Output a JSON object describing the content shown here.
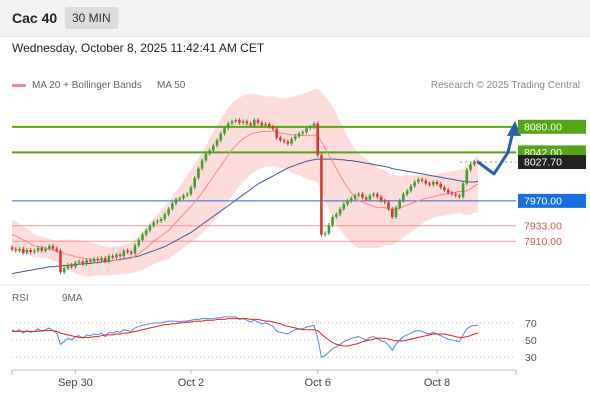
{
  "header": {
    "symbol": "Cac 40",
    "timeframe": "30 MIN"
  },
  "datetime": "Wednesday, October 8, 2025 11:42:41 AM CET",
  "legend": {
    "ma20_label": "MA 20 + Bollinger Bands",
    "ma50_label": "MA 50",
    "credit": "Research © 2025 Trading Central"
  },
  "rsi_legend": {
    "rsi_label": "RSI",
    "ma_label": "9MA"
  },
  "colors": {
    "green": "#55a614",
    "blue": "#1a6fe0",
    "red": "#e05050",
    "ma50": "#3c5a9a",
    "candle_up": "#3e9e2e",
    "candle_down": "#d23a3a",
    "band": "#ffd0d0",
    "arrow": "#2a5ea8"
  },
  "chart_data": [
    {
      "type": "candlestick",
      "title": "Cac 40",
      "x_ticks": [
        "Sep 30",
        "Oct 2",
        "Oct 6",
        "Oct 8"
      ],
      "ylim": [
        7845,
        8105
      ],
      "levels": [
        {
          "label": "8080.00",
          "value": 8080,
          "style": "resistance"
        },
        {
          "label": "8042.00",
          "value": 8042,
          "style": "resistance"
        },
        {
          "label": "8027.70",
          "value": 8027.7,
          "style": "current"
        },
        {
          "label": "7970.00",
          "value": 7970,
          "style": "pivot"
        },
        {
          "label": "7933.00",
          "value": 7933,
          "style": "support"
        },
        {
          "label": "7910.00",
          "value": 7910,
          "style": "support"
        }
      ],
      "close": [
        7898,
        7896,
        7899,
        7893,
        7897,
        7894,
        7896,
        7900,
        7896,
        7899,
        7903,
        7899,
        7896,
        7864,
        7870,
        7875,
        7872,
        7878,
        7880,
        7876,
        7882,
        7880,
        7884,
        7882,
        7885,
        7880,
        7888,
        7886,
        7890,
        7888,
        7896,
        7894,
        7892,
        7904,
        7912,
        7920,
        7926,
        7933,
        7938,
        7940,
        7943,
        7950,
        7958,
        7966,
        7972,
        7974,
        7978,
        7980,
        7990,
        8004,
        8018,
        8030,
        8040,
        8045,
        8052,
        8060,
        8070,
        8078,
        8085,
        8088,
        8090,
        8086,
        8088,
        8085,
        8082,
        8090,
        8086,
        8082,
        8084,
        8080,
        8077,
        8064,
        8060,
        8058,
        8055,
        8062,
        8066,
        8070,
        8072,
        8078,
        8080,
        8085,
        8038,
        7920,
        7922,
        7934,
        7946,
        7950,
        7958,
        7965,
        7970,
        7974,
        7978,
        7980,
        7975,
        7972,
        7978,
        7980,
        7976,
        7970,
        7968,
        7958,
        7946,
        7960,
        7970,
        7980,
        7985,
        7992,
        7998,
        8002,
        8000,
        7996,
        7994,
        7998,
        7995,
        7990,
        7986,
        7982,
        7980,
        7978,
        7976,
        7996,
        8016,
        8024,
        8028,
        8027.7
      ],
      "ma20": [
        7920,
        7918,
        7915,
        7912,
        7910,
        7906,
        7903,
        7902,
        7901,
        7900,
        7899,
        7897,
        7895,
        7894,
        7892,
        7890,
        7889,
        7887,
        7886,
        7885,
        7884,
        7883,
        7883,
        7882,
        7882,
        7881,
        7881,
        7881,
        7882,
        7882,
        7883,
        7884,
        7885,
        7888,
        7892,
        7896,
        7900,
        7905,
        7910,
        7914,
        7918,
        7922,
        7926,
        7932,
        7938,
        7944,
        7950,
        7956,
        7962,
        7968,
        7975,
        7982,
        7990,
        7998,
        8006,
        8014,
        8022,
        8030,
        8038,
        8046,
        8052,
        8058,
        8062,
        8066,
        8069,
        8071,
        8072,
        8073,
        8073,
        8073,
        8074,
        8072,
        8071,
        8070,
        8069,
        8068,
        8068,
        8068,
        8067,
        8067,
        8067,
        8068,
        8067,
        8058,
        8048,
        8038,
        8028,
        8018,
        8008,
        7998,
        7990,
        7982,
        7975,
        7970,
        7968,
        7966,
        7964,
        7962,
        7960,
        7960,
        7960,
        7958,
        7957,
        7958,
        7959,
        7962,
        7964,
        7966,
        7968,
        7970,
        7972,
        7974,
        7975,
        7976,
        7978,
        7979,
        7980,
        7981,
        7982,
        7983,
        7984,
        7984,
        7985,
        7988,
        7992,
        7995
      ],
      "ma50": [
        7862,
        7863,
        7864,
        7865,
        7866,
        7867,
        7868,
        7869,
        7870,
        7871,
        7872,
        7872,
        7873,
        7873,
        7874,
        7874,
        7875,
        7875,
        7876,
        7876,
        7877,
        7877,
        7878,
        7878,
        7879,
        7880,
        7880,
        7881,
        7882,
        7883,
        7884,
        7885,
        7886,
        7887,
        7888,
        7890,
        7892,
        7894,
        7896,
        7898,
        7900,
        7902,
        7905,
        7908,
        7911,
        7914,
        7917,
        7920,
        7923,
        7927,
        7931,
        7935,
        7939,
        7943,
        7947,
        7951,
        7955,
        7959,
        7963,
        7967,
        7971,
        7975,
        7979,
        7983,
        7987,
        7991,
        7995,
        7998,
        8001,
        8004,
        8007,
        8010,
        8013,
        8016,
        8019,
        8021,
        8023,
        8025,
        8027,
        8029,
        8030,
        8031,
        8032,
        8032,
        8032,
        8032,
        8032,
        8032,
        8031,
        8031,
        8030,
        8030,
        8029,
        8028,
        8027,
        8026,
        8025,
        8024,
        8023,
        8022,
        8021,
        8020,
        8018,
        8017,
        8016,
        8015,
        8014,
        8013,
        8012,
        8011,
        8010,
        8009,
        8008,
        8007,
        8006,
        8005,
        8004,
        8003,
        8002,
        8001,
        8000,
        7999,
        7998,
        7998,
        7998,
        7999
      ],
      "bb_width": [
        22,
        22,
        21,
        20,
        19,
        18,
        17,
        16,
        16,
        15,
        15,
        15,
        16,
        18,
        20,
        22,
        24,
        25,
        26,
        26,
        26,
        25,
        24,
        23,
        22,
        22,
        21,
        21,
        21,
        21,
        22,
        22,
        23,
        24,
        26,
        28,
        30,
        32,
        34,
        36,
        38,
        40,
        42,
        44,
        46,
        48,
        50,
        52,
        54,
        56,
        58,
        60,
        62,
        64,
        66,
        68,
        70,
        70,
        70,
        69,
        68,
        66,
        64,
        62,
        60,
        58,
        56,
        54,
        52,
        52,
        52,
        52,
        52,
        52,
        54,
        56,
        58,
        60,
        62,
        64,
        66,
        68,
        70,
        74,
        78,
        80,
        82,
        82,
        80,
        78,
        76,
        74,
        72,
        70,
        68,
        66,
        64,
        62,
        60,
        58,
        56,
        54,
        52,
        50,
        48,
        46,
        44,
        42,
        40,
        38,
        36,
        34,
        33,
        32,
        32,
        32,
        32,
        32,
        32,
        32,
        32,
        34,
        36,
        38,
        40,
        42
      ],
      "forecast": [
        8027.7,
        8010,
        8042,
        8080
      ]
    },
    {
      "type": "line",
      "title": "RSI",
      "ylim": [
        15,
        85
      ],
      "y_ticks": [
        "70",
        "50",
        "30"
      ],
      "series": [
        {
          "name": "RSI",
          "values": [
            62,
            60,
            62,
            58,
            61,
            59,
            60,
            63,
            60,
            62,
            64,
            61,
            58,
            45,
            48,
            52,
            50,
            54,
            55,
            52,
            56,
            55,
            57,
            56,
            58,
            54,
            59,
            58,
            60,
            59,
            62,
            61,
            60,
            64,
            66,
            67,
            68,
            69,
            70,
            70,
            70,
            71,
            72,
            72,
            72,
            71,
            72,
            72,
            73,
            74,
            74,
            75,
            75,
            75,
            75,
            76,
            76,
            77,
            77,
            77,
            77,
            74,
            75,
            73,
            71,
            73,
            71,
            69,
            70,
            68,
            66,
            60,
            59,
            58,
            57,
            60,
            62,
            63,
            63,
            65,
            66,
            67,
            52,
            30,
            32,
            36,
            40,
            42,
            45,
            48,
            50,
            52,
            53,
            54,
            52,
            50,
            53,
            54,
            52,
            49,
            48,
            44,
            38,
            45,
            50,
            54,
            56,
            58,
            60,
            61,
            60,
            58,
            57,
            59,
            57,
            55,
            53,
            51,
            50,
            49,
            48,
            56,
            63,
            66,
            67,
            67
          ]
        },
        {
          "name": "9MA",
          "values": [
            60,
            60,
            60,
            60,
            60,
            60,
            60,
            60,
            61,
            61,
            61,
            61,
            60,
            58,
            57,
            56,
            55,
            54,
            53,
            53,
            53,
            53,
            54,
            54,
            55,
            56,
            56,
            56,
            57,
            57,
            58,
            58,
            59,
            60,
            61,
            62,
            63,
            64,
            65,
            66,
            67,
            68,
            68,
            69,
            69,
            70,
            70,
            71,
            71,
            72,
            72,
            72,
            73,
            73,
            73,
            74,
            74,
            74,
            75,
            75,
            75,
            75,
            75,
            75,
            74,
            74,
            74,
            73,
            72,
            72,
            71,
            70,
            69,
            67,
            66,
            65,
            64,
            63,
            62,
            62,
            62,
            62,
            61,
            57,
            53,
            50,
            47,
            45,
            44,
            43,
            43,
            44,
            45,
            46,
            48,
            49,
            50,
            51,
            52,
            52,
            52,
            51,
            50,
            49,
            49,
            49,
            50,
            51,
            52,
            53,
            54,
            55,
            56,
            57,
            57,
            57,
            57,
            56,
            55,
            54,
            53,
            53,
            54,
            55,
            57,
            58
          ]
        }
      ]
    }
  ]
}
